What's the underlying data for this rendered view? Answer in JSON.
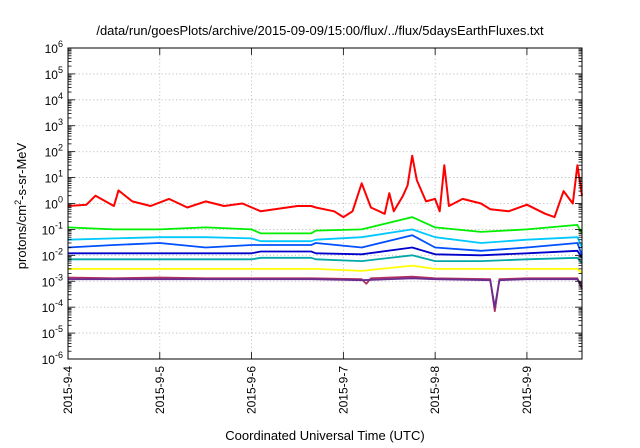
{
  "chart_data": {
    "type": "line",
    "title": "/data/run/goesPlots/archive/2015-09-09/15:00/flux/../flux/5daysEarthFluxes.txt",
    "xlabel": "Coordinated Universal Time (UTC)",
    "ylabel": {
      "prefix": "protons/cm",
      "sup": "2",
      "suffix": "-s-sr-MeV"
    },
    "y_scale": "log",
    "ylim_exp": [
      -6,
      6
    ],
    "y_tick_labels": [
      {
        "base": "10",
        "exp": "6"
      },
      {
        "base": "10",
        "exp": "5"
      },
      {
        "base": "10",
        "exp": "4"
      },
      {
        "base": "10",
        "exp": "3"
      },
      {
        "base": "10",
        "exp": "2"
      },
      {
        "base": "10",
        "exp": "1"
      },
      {
        "base": "10",
        "exp": "0"
      },
      {
        "base": "10",
        "exp": "-1"
      },
      {
        "base": "10",
        "exp": "-2"
      },
      {
        "base": "10",
        "exp": "-3"
      },
      {
        "base": "10",
        "exp": "-4"
      },
      {
        "base": "10",
        "exp": "-5"
      },
      {
        "base": "10",
        "exp": "-6"
      }
    ],
    "x_tick_labels": [
      "2015-9-4",
      "2015-9-5",
      "2015-9-6",
      "2015-9-7",
      "2015-9-8",
      "2015-9-9"
    ],
    "x_range_days": [
      0,
      5.6
    ],
    "grid": true,
    "series": [
      {
        "color": "#ff0000",
        "values": [
          [
            0.0,
            0.8
          ],
          [
            0.2,
            0.9
          ],
          [
            0.3,
            2.0
          ],
          [
            0.5,
            0.8
          ],
          [
            0.55,
            3.2
          ],
          [
            0.7,
            1.2
          ],
          [
            0.9,
            0.8
          ],
          [
            1.1,
            1.5
          ],
          [
            1.3,
            0.7
          ],
          [
            1.5,
            1.2
          ],
          [
            1.7,
            0.8
          ],
          [
            1.9,
            1.0
          ],
          [
            2.1,
            0.5
          ],
          [
            2.5,
            0.8
          ],
          [
            2.65,
            0.8
          ],
          [
            2.7,
            0.7
          ],
          [
            2.9,
            0.5
          ],
          [
            3.0,
            0.3
          ],
          [
            3.1,
            0.5
          ],
          [
            3.2,
            6.0
          ],
          [
            3.3,
            0.7
          ],
          [
            3.45,
            0.4
          ],
          [
            3.5,
            2.5
          ],
          [
            3.55,
            0.5
          ],
          [
            3.6,
            1.0
          ],
          [
            3.65,
            2.0
          ],
          [
            3.7,
            5.0
          ],
          [
            3.75,
            70
          ],
          [
            3.8,
            8.0
          ],
          [
            3.9,
            1.2
          ],
          [
            4.0,
            1.5
          ],
          [
            4.05,
            0.5
          ],
          [
            4.1,
            30
          ],
          [
            4.15,
            0.8
          ],
          [
            4.3,
            1.5
          ],
          [
            4.5,
            1.0
          ],
          [
            4.6,
            0.6
          ],
          [
            4.8,
            0.5
          ],
          [
            5.0,
            0.9
          ],
          [
            5.2,
            0.4
          ],
          [
            5.3,
            0.3
          ],
          [
            5.4,
            3.0
          ],
          [
            5.5,
            1.0
          ],
          [
            5.55,
            30
          ],
          [
            5.6,
            2.0
          ]
        ]
      },
      {
        "color": "#00ee00",
        "values": [
          [
            0.0,
            0.12
          ],
          [
            0.5,
            0.1
          ],
          [
            1.0,
            0.1
          ],
          [
            1.5,
            0.12
          ],
          [
            2.0,
            0.1
          ],
          [
            2.1,
            0.07
          ],
          [
            2.65,
            0.07
          ],
          [
            2.7,
            0.09
          ],
          [
            3.2,
            0.1
          ],
          [
            3.75,
            0.3
          ],
          [
            4.0,
            0.12
          ],
          [
            4.5,
            0.08
          ],
          [
            5.0,
            0.1
          ],
          [
            5.55,
            0.15
          ],
          [
            5.6,
            0.07
          ]
        ]
      },
      {
        "color": "#00c8ff",
        "values": [
          [
            0.0,
            0.04
          ],
          [
            0.5,
            0.045
          ],
          [
            1.0,
            0.05
          ],
          [
            1.5,
            0.05
          ],
          [
            2.0,
            0.045
          ],
          [
            2.1,
            0.035
          ],
          [
            2.65,
            0.035
          ],
          [
            2.7,
            0.04
          ],
          [
            3.2,
            0.05
          ],
          [
            3.75,
            0.1
          ],
          [
            4.0,
            0.05
          ],
          [
            4.5,
            0.03
          ],
          [
            5.0,
            0.04
          ],
          [
            5.55,
            0.05
          ],
          [
            5.6,
            0.02
          ]
        ]
      },
      {
        "color": "#0050ff",
        "values": [
          [
            0.0,
            0.02
          ],
          [
            0.5,
            0.025
          ],
          [
            1.0,
            0.03
          ],
          [
            1.5,
            0.02
          ],
          [
            2.0,
            0.025
          ],
          [
            2.1,
            0.025
          ],
          [
            2.65,
            0.025
          ],
          [
            2.7,
            0.03
          ],
          [
            3.2,
            0.02
          ],
          [
            3.75,
            0.06
          ],
          [
            4.0,
            0.02
          ],
          [
            4.5,
            0.015
          ],
          [
            5.0,
            0.02
          ],
          [
            5.55,
            0.03
          ],
          [
            5.6,
            0.01
          ]
        ]
      },
      {
        "color": "#0000cc",
        "values": [
          [
            0.0,
            0.012
          ],
          [
            0.5,
            0.012
          ],
          [
            1.0,
            0.012
          ],
          [
            1.5,
            0.012
          ],
          [
            2.0,
            0.012
          ],
          [
            2.1,
            0.014
          ],
          [
            2.65,
            0.014
          ],
          [
            2.7,
            0.012
          ],
          [
            3.2,
            0.011
          ],
          [
            3.75,
            0.02
          ],
          [
            4.0,
            0.011
          ],
          [
            4.5,
            0.01
          ],
          [
            5.0,
            0.012
          ],
          [
            5.55,
            0.015
          ],
          [
            5.6,
            0.008
          ]
        ]
      },
      {
        "color": "#00a8a8",
        "values": [
          [
            0.0,
            0.007
          ],
          [
            0.5,
            0.007
          ],
          [
            1.0,
            0.007
          ],
          [
            1.5,
            0.007
          ],
          [
            2.0,
            0.007
          ],
          [
            2.1,
            0.008
          ],
          [
            2.65,
            0.008
          ],
          [
            2.7,
            0.007
          ],
          [
            3.2,
            0.006
          ],
          [
            3.75,
            0.01
          ],
          [
            4.0,
            0.006
          ],
          [
            4.5,
            0.006
          ],
          [
            5.0,
            0.007
          ],
          [
            5.55,
            0.008
          ],
          [
            5.6,
            0.005
          ]
        ]
      },
      {
        "color": "#ffff00",
        "values": [
          [
            0.0,
            0.003
          ],
          [
            0.5,
            0.003
          ],
          [
            1.0,
            0.003
          ],
          [
            1.5,
            0.003
          ],
          [
            2.0,
            0.003
          ],
          [
            2.65,
            0.003
          ],
          [
            2.7,
            0.003
          ],
          [
            3.2,
            0.0025
          ],
          [
            3.75,
            0.004
          ],
          [
            4.0,
            0.003
          ],
          [
            4.5,
            0.003
          ],
          [
            5.0,
            0.003
          ],
          [
            5.55,
            0.003
          ],
          [
            5.6,
            0.002
          ]
        ]
      },
      {
        "color": "#b03060",
        "values": [
          [
            0.0,
            0.0014
          ],
          [
            0.5,
            0.0013
          ],
          [
            1.0,
            0.0014
          ],
          [
            1.5,
            0.0013
          ],
          [
            2.0,
            0.0013
          ],
          [
            2.65,
            0.0013
          ],
          [
            3.2,
            0.0012
          ],
          [
            3.25,
            0.0008
          ],
          [
            3.3,
            0.0013
          ],
          [
            3.75,
            0.0015
          ],
          [
            4.0,
            0.0013
          ],
          [
            4.6,
            0.0012
          ],
          [
            4.65,
            7e-05
          ],
          [
            4.7,
            0.0012
          ],
          [
            5.0,
            0.0013
          ],
          [
            5.55,
            0.0013
          ],
          [
            5.6,
            0.0005
          ]
        ]
      },
      {
        "color": "#6a2c91",
        "values": [
          [
            0.0,
            0.0012
          ],
          [
            0.5,
            0.0012
          ],
          [
            1.0,
            0.0012
          ],
          [
            1.5,
            0.0012
          ],
          [
            2.0,
            0.0012
          ],
          [
            2.65,
            0.0012
          ],
          [
            3.2,
            0.0011
          ],
          [
            3.75,
            0.0013
          ],
          [
            4.0,
            0.0012
          ],
          [
            4.6,
            0.0011
          ],
          [
            4.65,
            0.0001
          ],
          [
            4.7,
            0.0011
          ],
          [
            5.0,
            0.0012
          ],
          [
            5.55,
            0.0012
          ],
          [
            5.6,
            0.0006
          ]
        ]
      }
    ]
  }
}
